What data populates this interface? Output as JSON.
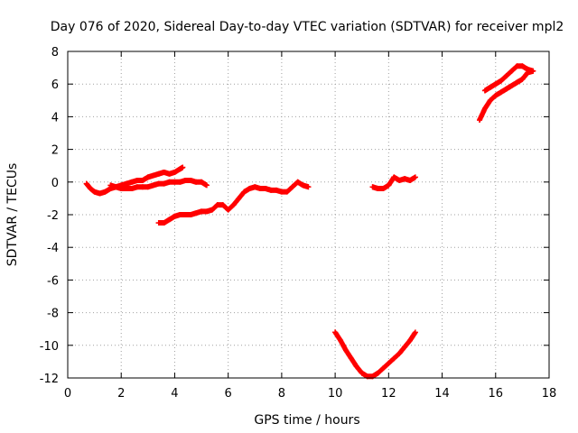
{
  "chart_data": {
    "type": "scatter",
    "title": "Day 076 of 2020, Sidereal Day-to-day VTEC variation (SDTVAR) for receiver mpl2",
    "xlabel": "GPS time / hours",
    "ylabel": "SDTVAR / TECUs",
    "xlim": [
      0,
      18
    ],
    "ylim": [
      -12,
      8
    ],
    "xticks": [
      "0",
      "2",
      "4",
      "6",
      "8",
      "10",
      "12",
      "14",
      "16",
      "18"
    ],
    "yticks": [
      "-12",
      "-10",
      "-8",
      "-6",
      "-4",
      "-2",
      "0",
      "2",
      "4",
      "6",
      "8"
    ],
    "grid": true,
    "marker": "+",
    "color": "#ff0000",
    "series": [
      {
        "points": [
          [
            0.7,
            -0.1
          ],
          [
            0.85,
            -0.4
          ],
          [
            1.0,
            -0.6
          ],
          [
            1.2,
            -0.7
          ],
          [
            1.4,
            -0.6
          ],
          [
            1.6,
            -0.4
          ],
          [
            1.8,
            -0.3
          ],
          [
            2.0,
            -0.2
          ],
          [
            2.2,
            -0.1
          ],
          [
            2.4,
            0.0
          ],
          [
            2.6,
            0.1
          ],
          [
            2.8,
            0.1
          ],
          [
            3.0,
            0.3
          ],
          [
            3.2,
            0.4
          ],
          [
            3.4,
            0.5
          ],
          [
            3.6,
            0.6
          ],
          [
            3.8,
            0.5
          ],
          [
            4.0,
            0.6
          ],
          [
            4.2,
            0.8
          ],
          [
            4.3,
            0.9
          ]
        ]
      },
      {
        "points": [
          [
            1.6,
            -0.2
          ],
          [
            1.8,
            -0.3
          ],
          [
            2.0,
            -0.4
          ],
          [
            2.2,
            -0.4
          ],
          [
            2.4,
            -0.4
          ],
          [
            2.6,
            -0.3
          ],
          [
            2.8,
            -0.3
          ],
          [
            3.0,
            -0.3
          ],
          [
            3.2,
            -0.2
          ],
          [
            3.4,
            -0.1
          ],
          [
            3.6,
            -0.1
          ],
          [
            3.8,
            0.0
          ],
          [
            4.0,
            0.0
          ],
          [
            4.2,
            0.0
          ],
          [
            4.4,
            0.1
          ],
          [
            4.6,
            0.1
          ],
          [
            4.8,
            0.0
          ],
          [
            5.0,
            0.0
          ],
          [
            5.2,
            -0.2
          ]
        ]
      },
      {
        "points": [
          [
            3.4,
            -2.5
          ],
          [
            3.6,
            -2.5
          ],
          [
            3.8,
            -2.3
          ],
          [
            4.0,
            -2.1
          ],
          [
            4.2,
            -2.0
          ],
          [
            4.4,
            -2.0
          ],
          [
            4.6,
            -2.0
          ],
          [
            4.8,
            -1.9
          ],
          [
            5.0,
            -1.8
          ],
          [
            5.2,
            -1.8
          ],
          [
            5.4,
            -1.7
          ],
          [
            5.6,
            -1.4
          ],
          [
            5.8,
            -1.4
          ],
          [
            6.0,
            -1.7
          ],
          [
            6.2,
            -1.4
          ],
          [
            6.4,
            -1.0
          ],
          [
            6.6,
            -0.6
          ],
          [
            6.8,
            -0.4
          ],
          [
            7.0,
            -0.3
          ],
          [
            7.2,
            -0.4
          ],
          [
            7.4,
            -0.4
          ],
          [
            7.6,
            -0.5
          ],
          [
            7.8,
            -0.5
          ],
          [
            8.0,
            -0.6
          ],
          [
            8.2,
            -0.6
          ],
          [
            8.4,
            -0.3
          ],
          [
            8.6,
            0.0
          ],
          [
            8.8,
            -0.2
          ],
          [
            9.0,
            -0.3
          ]
        ]
      },
      {
        "points": [
          [
            10.0,
            -9.2
          ],
          [
            10.2,
            -9.7
          ],
          [
            10.4,
            -10.3
          ],
          [
            10.6,
            -10.8
          ],
          [
            10.8,
            -11.3
          ],
          [
            11.0,
            -11.7
          ],
          [
            11.2,
            -11.9
          ],
          [
            11.4,
            -11.9
          ],
          [
            11.6,
            -11.7
          ],
          [
            11.8,
            -11.4
          ],
          [
            12.0,
            -11.1
          ],
          [
            12.2,
            -10.8
          ],
          [
            12.4,
            -10.5
          ],
          [
            12.6,
            -10.1
          ],
          [
            12.8,
            -9.7
          ],
          [
            13.0,
            -9.2
          ]
        ]
      },
      {
        "points": [
          [
            11.4,
            -0.3
          ],
          [
            11.6,
            -0.4
          ],
          [
            11.8,
            -0.4
          ],
          [
            12.0,
            -0.2
          ],
          [
            12.2,
            0.3
          ],
          [
            12.4,
            0.1
          ],
          [
            12.6,
            0.2
          ],
          [
            12.8,
            0.1
          ],
          [
            13.0,
            0.3
          ]
        ]
      },
      {
        "points": [
          [
            15.4,
            3.8
          ],
          [
            15.6,
            4.5
          ],
          [
            15.8,
            5.0
          ],
          [
            16.0,
            5.3
          ],
          [
            16.2,
            5.5
          ],
          [
            16.4,
            5.7
          ],
          [
            16.6,
            5.9
          ],
          [
            16.8,
            6.1
          ],
          [
            17.0,
            6.3
          ],
          [
            17.2,
            6.7
          ],
          [
            17.4,
            6.8
          ]
        ]
      },
      {
        "points": [
          [
            15.6,
            5.6
          ],
          [
            15.8,
            5.8
          ],
          [
            16.0,
            6.0
          ],
          [
            16.2,
            6.2
          ],
          [
            16.4,
            6.5
          ],
          [
            16.6,
            6.8
          ],
          [
            16.8,
            7.1
          ],
          [
            17.0,
            7.1
          ],
          [
            17.2,
            6.9
          ],
          [
            17.4,
            6.8
          ]
        ]
      }
    ]
  }
}
